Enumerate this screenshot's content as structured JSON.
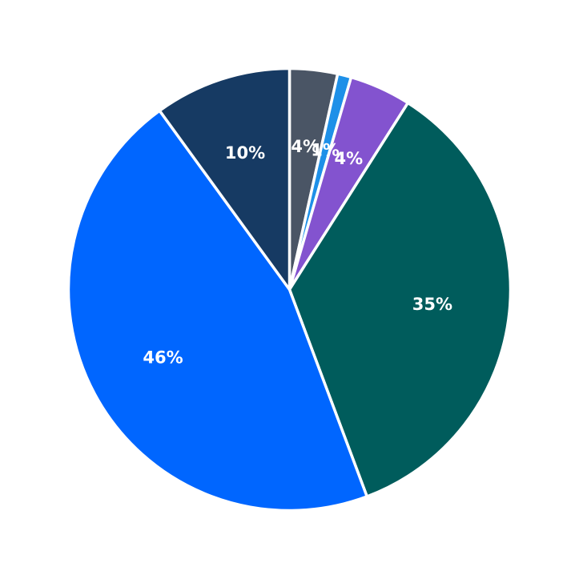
{
  "chart_data": {
    "type": "pie",
    "title": "",
    "legend": "none",
    "start_angle_deg": 90,
    "direction": "clockwise",
    "slices": [
      {
        "label": "4%",
        "value": 3.5,
        "color": "#4a5565"
      },
      {
        "label": "1%",
        "value": 1.0,
        "color": "#1e90e8"
      },
      {
        "label": "4%",
        "value": 4.5,
        "color": "#8353cf"
      },
      {
        "label": "35%",
        "value": 35.3,
        "color": "#005c5c"
      },
      {
        "label": "46%",
        "value": 45.7,
        "color": "#0066ff"
      },
      {
        "label": "10%",
        "value": 10.0,
        "color": "#163a63"
      }
    ]
  }
}
